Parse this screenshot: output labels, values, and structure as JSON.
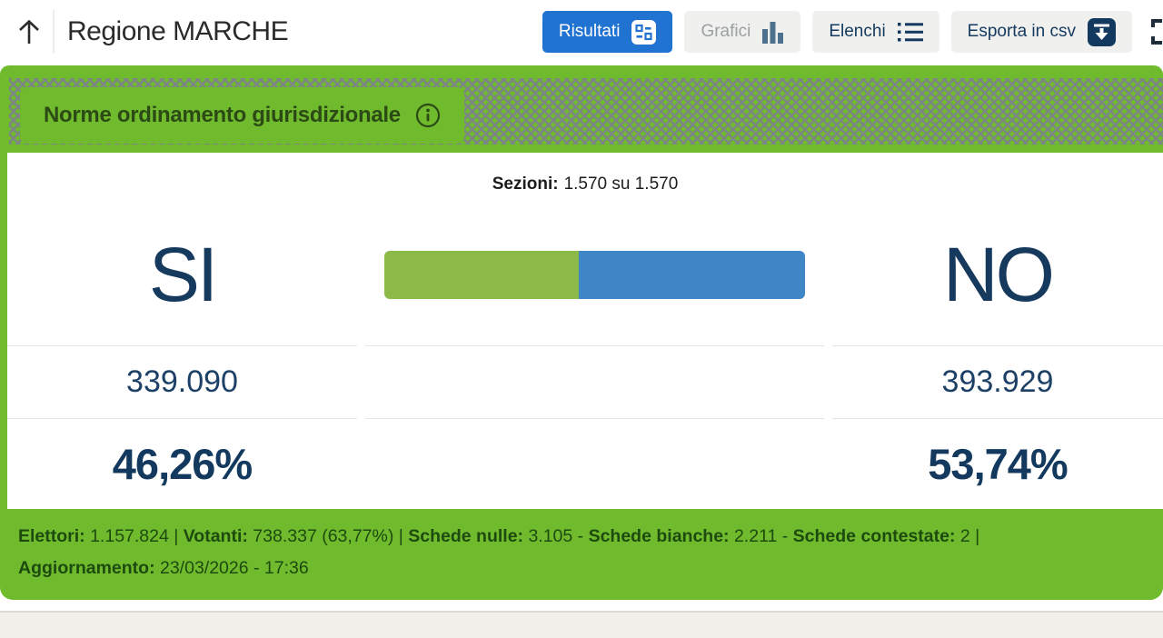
{
  "header": {
    "title": "Regione MARCHE",
    "buttons": {
      "risultati": "Risultati",
      "grafici": "Grafici",
      "elenchi": "Elenchi",
      "esporta": "Esporta in csv"
    }
  },
  "banner": {
    "question_title": "Norme ordinamento giurisdizionale"
  },
  "sezioni": {
    "label": "Sezioni:",
    "value": "1.570 su 1.570"
  },
  "results": {
    "si": {
      "label": "SI",
      "votes": "339.090",
      "percent": "46,26%",
      "percent_num": 46.26
    },
    "no": {
      "label": "NO",
      "votes": "393.929",
      "percent": "53,74%",
      "percent_num": 53.74
    }
  },
  "chart_data": {
    "type": "bar",
    "categories": [
      "SI",
      "NO"
    ],
    "values": [
      46.26,
      53.74
    ],
    "counts": [
      339090,
      393929
    ],
    "title": "Norme ordinamento giurisdizionale",
    "colors": [
      "#8cba49",
      "#3e86c6"
    ]
  },
  "footer": {
    "stats": [
      {
        "label": "Elettori:",
        "value": " 1.157.824",
        "sep": " | "
      },
      {
        "label": "Votanti:",
        "value": " 738.337 (63,77%)",
        "sep": " | "
      },
      {
        "label": "Schede nulle:",
        "value": " 3.105",
        "sep": " - "
      },
      {
        "label": "Schede bianche:",
        "value": " 2.211",
        "sep": " - "
      },
      {
        "label": "Schede contestate:",
        "value": " 2",
        "sep": " |"
      }
    ],
    "update": {
      "label": "Aggiornamento:",
      "value": " 23/03/2026 - 17:36"
    }
  },
  "colors": {
    "green": "#70ba2d",
    "bar_green": "#8cba49",
    "bar_blue": "#3e86c6",
    "active_blue": "#2173d1",
    "navy": "#16395e",
    "footer_text": "#1d4a0e"
  }
}
